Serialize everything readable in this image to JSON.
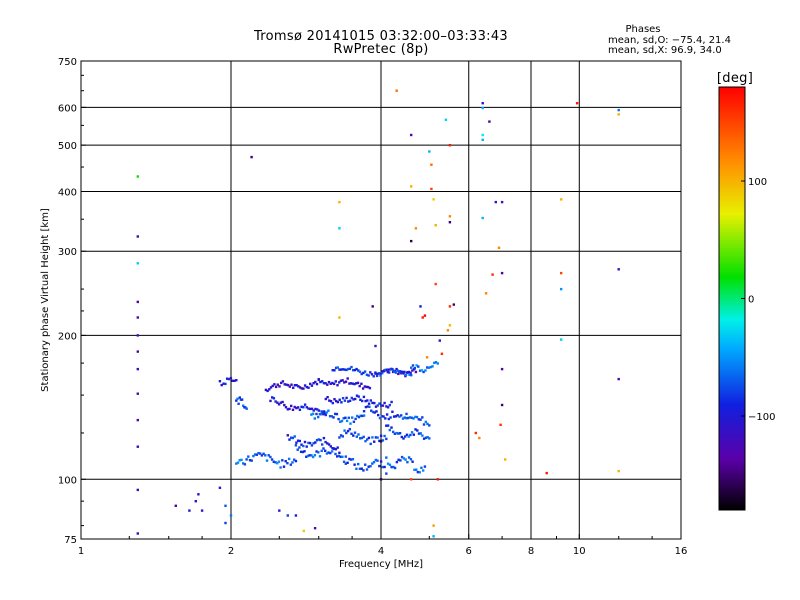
{
  "chart_data": {
    "type": "scatter",
    "title": "Tromsø 20141015 03:32:00–03:33:43",
    "subtitle": "RwPretec (8p)",
    "stats": {
      "heading": "Phases",
      "line1": "mean, sd,O: −75.4, 21.4",
      "line2": "mean, sd,X:  96.9, 34.0"
    },
    "xlabel": "Frequency [MHz]",
    "ylabel": "Stationary phase Virtual Height [km]",
    "x_scale": "log2",
    "y_scale": "log",
    "xlim": [
      1,
      16
    ],
    "ylim": [
      75,
      750
    ],
    "x_ticks": [
      1,
      2,
      4,
      6,
      8,
      10,
      16
    ],
    "x_tick_labels": [
      "1",
      "2",
      "4",
      "6",
      "8",
      "10",
      "16"
    ],
    "y_ticks": [
      75,
      100,
      200,
      300,
      400,
      500,
      600,
      750
    ],
    "y_tick_labels": [
      "75",
      "100",
      "200",
      "300",
      "400",
      "500",
      "600",
      "750"
    ],
    "x_gridlines": [
      2,
      4,
      6,
      8,
      10
    ],
    "y_gridlines": [
      100,
      200,
      300,
      400,
      500,
      600
    ],
    "grid": true,
    "colorbar": {
      "label": "[deg]",
      "range": [
        -180,
        180
      ],
      "ticks": [
        100,
        0,
        -100
      ],
      "tick_labels": [
        "100",
        "0",
        "−100"
      ]
    },
    "color_value": "phase [deg]",
    "traces": [
      {
        "f": [
          1.9,
          2.05
        ],
        "h": [
          160,
          162
        ],
        "phase": -95
      },
      {
        "f": [
          2.05,
          2.15
        ],
        "h": [
          148,
          142
        ],
        "phase": -75
      },
      {
        "f": [
          2.35,
          3.0
        ],
        "h": [
          156,
          158
        ],
        "phase": -110
      },
      {
        "f": [
          2.4,
          3.1
        ],
        "h": [
          146,
          138
        ],
        "phase": -100
      },
      {
        "f": [
          3.0,
          3.8
        ],
        "h": [
          160,
          158
        ],
        "phase": -105
      },
      {
        "f": [
          3.1,
          4.2
        ],
        "h": [
          148,
          144
        ],
        "phase": -95
      },
      {
        "f": [
          3.9,
          4.7
        ],
        "h": [
          168,
          168
        ],
        "phase": -115
      },
      {
        "f": [
          3.2,
          4.6
        ],
        "h": [
          170,
          166
        ],
        "phase": -80
      },
      {
        "f": [
          4.6,
          5.2
        ],
        "h": [
          170,
          173
        ],
        "phase": -60
      },
      {
        "f": [
          2.6,
          3.3
        ],
        "h": [
          121,
          117
        ],
        "phase": -85
      },
      {
        "f": [
          3.3,
          4.1
        ],
        "h": [
          125,
          120
        ],
        "phase": -80
      },
      {
        "f": [
          4.1,
          5.0
        ],
        "h": [
          127,
          122
        ],
        "phase": -75
      },
      {
        "f": [
          2.05,
          2.7
        ],
        "h": [
          111,
          109
        ],
        "phase": -70
      },
      {
        "f": [
          2.7,
          3.4
        ],
        "h": [
          115,
          112
        ],
        "phase": -75
      },
      {
        "f": [
          3.4,
          4.1
        ],
        "h": [
          108,
          106
        ],
        "phase": -80
      },
      {
        "f": [
          4.1,
          4.9
        ],
        "h": [
          110,
          106
        ],
        "phase": -70
      },
      {
        "f": [
          2.9,
          3.7
        ],
        "h": [
          137,
          133
        ],
        "phase": -70
      },
      {
        "f": [
          3.7,
          4.5
        ],
        "h": [
          139,
          134
        ],
        "phase": -80
      },
      {
        "f": [
          4.5,
          5.0
        ],
        "h": [
          135,
          132
        ],
        "phase": -65
      }
    ],
    "points": [
      {
        "f": 1.3,
        "h": 430,
        "phase": 20
      },
      {
        "f": 1.3,
        "h": 322,
        "phase": -120
      },
      {
        "f": 1.3,
        "h": 283,
        "phase": -30
      },
      {
        "f": 1.3,
        "h": 235,
        "phase": -140
      },
      {
        "f": 1.3,
        "h": 218,
        "phase": -130
      },
      {
        "f": 1.3,
        "h": 200,
        "phase": -125
      },
      {
        "f": 1.3,
        "h": 185,
        "phase": -135
      },
      {
        "f": 1.3,
        "h": 170,
        "phase": -120
      },
      {
        "f": 1.3,
        "h": 151,
        "phase": -125
      },
      {
        "f": 1.3,
        "h": 133,
        "phase": -130
      },
      {
        "f": 1.3,
        "h": 117,
        "phase": -120
      },
      {
        "f": 1.3,
        "h": 95,
        "phase": -120
      },
      {
        "f": 1.3,
        "h": 77,
        "phase": -120
      },
      {
        "f": 1.55,
        "h": 88,
        "phase": -140
      },
      {
        "f": 1.65,
        "h": 86,
        "phase": -100
      },
      {
        "f": 1.7,
        "h": 90,
        "phase": -120
      },
      {
        "f": 1.72,
        "h": 93,
        "phase": -110
      },
      {
        "f": 1.75,
        "h": 86,
        "phase": -110
      },
      {
        "f": 1.9,
        "h": 96,
        "phase": -110
      },
      {
        "f": 1.95,
        "h": 88,
        "phase": -70
      },
      {
        "f": 2.0,
        "h": 84,
        "phase": -60
      },
      {
        "f": 1.95,
        "h": 81,
        "phase": -80
      },
      {
        "f": 2.2,
        "h": 472,
        "phase": -150
      },
      {
        "f": 2.5,
        "h": 86,
        "phase": -100
      },
      {
        "f": 2.6,
        "h": 84,
        "phase": -80
      },
      {
        "f": 2.7,
        "h": 84,
        "phase": -100
      },
      {
        "f": 2.8,
        "h": 78,
        "phase": 90
      },
      {
        "f": 2.95,
        "h": 79,
        "phase": -130
      },
      {
        "f": 3.3,
        "h": 380,
        "phase": 100
      },
      {
        "f": 3.3,
        "h": 335,
        "phase": -30
      },
      {
        "f": 3.3,
        "h": 218,
        "phase": 100
      },
      {
        "f": 3.85,
        "h": 230,
        "phase": -150
      },
      {
        "f": 3.9,
        "h": 190,
        "phase": -120
      },
      {
        "f": 4.0,
        "h": 100,
        "phase": -160
      },
      {
        "f": 4.0,
        "h": 120,
        "phase": -160
      },
      {
        "f": 4.3,
        "h": 650,
        "phase": 130
      },
      {
        "f": 4.6,
        "h": 525,
        "phase": -130
      },
      {
        "f": 4.6,
        "h": 410,
        "phase": 100
      },
      {
        "f": 4.6,
        "h": 315,
        "phase": -160
      },
      {
        "f": 4.6,
        "h": 100,
        "phase": 150
      },
      {
        "f": 4.7,
        "h": 335,
        "phase": 120
      },
      {
        "f": 4.8,
        "h": 230,
        "phase": -90
      },
      {
        "f": 4.85,
        "h": 218,
        "phase": 170
      },
      {
        "f": 4.9,
        "h": 220,
        "phase": 180
      },
      {
        "f": 4.95,
        "h": 180,
        "phase": 120
      },
      {
        "f": 5.0,
        "h": 485,
        "phase": -40
      },
      {
        "f": 5.05,
        "h": 455,
        "phase": 130
      },
      {
        "f": 5.05,
        "h": 405,
        "phase": 150
      },
      {
        "f": 5.1,
        "h": 385,
        "phase": 90
      },
      {
        "f": 5.15,
        "h": 340,
        "phase": 100
      },
      {
        "f": 5.15,
        "h": 256,
        "phase": 150
      },
      {
        "f": 5.2,
        "h": 100,
        "phase": 170
      },
      {
        "f": 5.1,
        "h": 80,
        "phase": 110
      },
      {
        "f": 5.1,
        "h": 76,
        "phase": -40
      },
      {
        "f": 5.25,
        "h": 195,
        "phase": -120
      },
      {
        "f": 5.3,
        "h": 183,
        "phase": 160
      },
      {
        "f": 5.4,
        "h": 565,
        "phase": -30
      },
      {
        "f": 5.5,
        "h": 500,
        "phase": 170
      },
      {
        "f": 5.5,
        "h": 355,
        "phase": 120
      },
      {
        "f": 5.5,
        "h": 345,
        "phase": -150
      },
      {
        "f": 5.5,
        "h": 230,
        "phase": 160
      },
      {
        "f": 5.6,
        "h": 232,
        "phase": -150
      },
      {
        "f": 5.5,
        "h": 210,
        "phase": 100
      },
      {
        "f": 5.45,
        "h": 205,
        "phase": 120
      },
      {
        "f": 6.4,
        "h": 612,
        "phase": -110
      },
      {
        "f": 6.4,
        "h": 598,
        "phase": -40
      },
      {
        "f": 6.4,
        "h": 525,
        "phase": -20
      },
      {
        "f": 6.4,
        "h": 513,
        "phase": -40
      },
      {
        "f": 6.6,
        "h": 560,
        "phase": -140
      },
      {
        "f": 6.4,
        "h": 352,
        "phase": -40
      },
      {
        "f": 6.5,
        "h": 245,
        "phase": 120
      },
      {
        "f": 6.7,
        "h": 268,
        "phase": 160
      },
      {
        "f": 6.8,
        "h": 380,
        "phase": -100
      },
      {
        "f": 7.0,
        "h": 380,
        "phase": -130
      },
      {
        "f": 7.0,
        "h": 270,
        "phase": -140
      },
      {
        "f": 6.9,
        "h": 305,
        "phase": 120
      },
      {
        "f": 7.0,
        "h": 170,
        "phase": -140
      },
      {
        "f": 7.0,
        "h": 143,
        "phase": -150
      },
      {
        "f": 6.95,
        "h": 130,
        "phase": 160
      },
      {
        "f": 7.1,
        "h": 110,
        "phase": 100
      },
      {
        "f": 6.2,
        "h": 125,
        "phase": 160
      },
      {
        "f": 6.3,
        "h": 122,
        "phase": 120
      },
      {
        "f": 8.6,
        "h": 103,
        "phase": 170
      },
      {
        "f": 9.2,
        "h": 270,
        "phase": 150
      },
      {
        "f": 9.2,
        "h": 250,
        "phase": -50
      },
      {
        "f": 9.2,
        "h": 385,
        "phase": 100
      },
      {
        "f": 9.2,
        "h": 196,
        "phase": -30
      },
      {
        "f": 9.9,
        "h": 612,
        "phase": 170
      },
      {
        "f": 12.0,
        "h": 592,
        "phase": -60
      },
      {
        "f": 12.0,
        "h": 580,
        "phase": 100
      },
      {
        "f": 12.0,
        "h": 275,
        "phase": -110
      },
      {
        "f": 12.0,
        "h": 162,
        "phase": -130
      },
      {
        "f": 12.0,
        "h": 104,
        "phase": 100
      }
    ]
  }
}
